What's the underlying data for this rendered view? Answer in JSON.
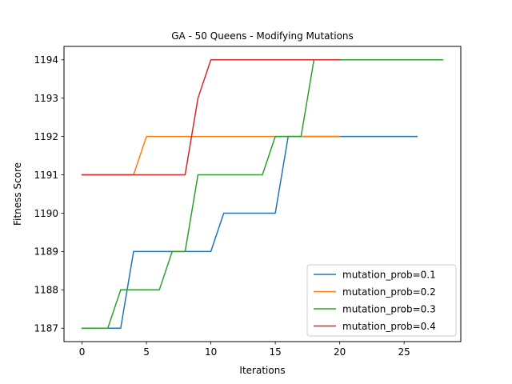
{
  "chart_data": {
    "type": "line",
    "title": "GA - 50 Queens - Modifying Mutations",
    "xlabel": "Iterations",
    "ylabel": "Fitness Score",
    "xlim": [
      -1.4,
      29.4
    ],
    "ylim": [
      1186.65,
      1194.35
    ],
    "xticks": [
      0,
      5,
      10,
      15,
      20,
      25
    ],
    "yticks": [
      1187,
      1188,
      1189,
      1190,
      1191,
      1192,
      1193,
      1194
    ],
    "grid": false,
    "legend_position": "lower-right",
    "series": [
      {
        "name": "mutation_prob=0.1",
        "color": "#1f77b4",
        "x": [
          0,
          1,
          2,
          3,
          4,
          5,
          6,
          7,
          8,
          9,
          10,
          11,
          12,
          13,
          14,
          15,
          16,
          17,
          18,
          19,
          20,
          21,
          22,
          23,
          24,
          25,
          26
        ],
        "values": [
          1187,
          1187,
          1187,
          1187,
          1189,
          1189,
          1189,
          1189,
          1189,
          1189,
          1189,
          1190,
          1190,
          1190,
          1190,
          1190,
          1192,
          1192,
          1192,
          1192,
          1192,
          1192,
          1192,
          1192,
          1192,
          1192,
          1192
        ]
      },
      {
        "name": "mutation_prob=0.2",
        "color": "#ff7f0e",
        "x": [
          0,
          1,
          2,
          3,
          4,
          5,
          6,
          7,
          8,
          9,
          10,
          11,
          12,
          13,
          14,
          15,
          16,
          17,
          18,
          19,
          20
        ],
        "values": [
          1191,
          1191,
          1191,
          1191,
          1191,
          1192,
          1192,
          1192,
          1192,
          1192,
          1192,
          1192,
          1192,
          1192,
          1192,
          1192,
          1192,
          1192,
          1192,
          1192,
          1192
        ]
      },
      {
        "name": "mutation_prob=0.3",
        "color": "#2ca02c",
        "x": [
          0,
          1,
          2,
          3,
          4,
          5,
          6,
          7,
          8,
          9,
          10,
          11,
          12,
          13,
          14,
          15,
          16,
          17,
          18,
          19,
          20,
          21,
          22,
          23,
          24,
          25,
          26,
          27,
          28
        ],
        "values": [
          1187,
          1187,
          1187,
          1188,
          1188,
          1188,
          1188,
          1189,
          1189,
          1191,
          1191,
          1191,
          1191,
          1191,
          1191,
          1192,
          1192,
          1192,
          1194,
          1194,
          1194,
          1194,
          1194,
          1194,
          1194,
          1194,
          1194,
          1194,
          1194
        ]
      },
      {
        "name": "mutation_prob=0.4",
        "color": "#d62728",
        "x": [
          0,
          1,
          2,
          3,
          4,
          5,
          6,
          7,
          8,
          9,
          10,
          11,
          12,
          13,
          14,
          15,
          16,
          17,
          18,
          19,
          20
        ],
        "values": [
          1191,
          1191,
          1191,
          1191,
          1191,
          1191,
          1191,
          1191,
          1191,
          1193,
          1194,
          1194,
          1194,
          1194,
          1194,
          1194,
          1194,
          1194,
          1194,
          1194,
          1194
        ]
      }
    ]
  }
}
